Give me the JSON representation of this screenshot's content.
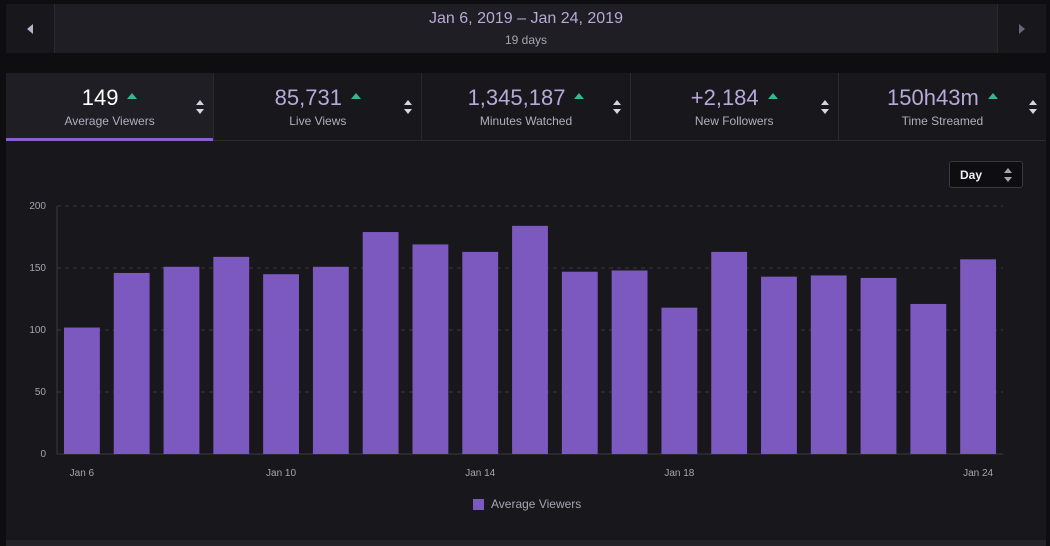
{
  "date_range": {
    "title": "Jan 6, 2019 – Jan 24, 2019",
    "subtitle": "19 days"
  },
  "stats": [
    {
      "value": "149",
      "label": "Average Viewers",
      "active": true
    },
    {
      "value": "85,731",
      "label": "Live Views"
    },
    {
      "value": "1,345,187",
      "label": "Minutes Watched"
    },
    {
      "value": "+2,184",
      "label": "New Followers"
    },
    {
      "value": "150h43m",
      "label": "Time Streamed"
    }
  ],
  "granularity": {
    "selected": "Day"
  },
  "colors": {
    "accent": "#8a5dd0",
    "bar": "#7b59bf",
    "up": "#2fb98d"
  },
  "icons": [
    "chevron-left-icon",
    "chevron-right-icon",
    "trend-up-icon",
    "sort-icon"
  ],
  "chart_data": {
    "type": "bar",
    "categories": [
      "Jan 6",
      "Jan 7",
      "Jan 8",
      "Jan 9",
      "Jan 10",
      "Jan 11",
      "Jan 12",
      "Jan 13",
      "Jan 14",
      "Jan 15",
      "Jan 16",
      "Jan 17",
      "Jan 18",
      "Jan 19",
      "Jan 20",
      "Jan 21",
      "Jan 22",
      "Jan 23",
      "Jan 24"
    ],
    "tick_labels": [
      "Jan 6",
      "Jan 10",
      "Jan 14",
      "Jan 18",
      "Jan 24"
    ],
    "series": [
      {
        "name": "Average Viewers",
        "values": [
          102,
          146,
          151,
          159,
          145,
          151,
          179,
          169,
          163,
          184,
          147,
          148,
          118,
          163,
          143,
          144,
          142,
          121,
          157
        ]
      }
    ],
    "ylim": [
      0,
      200
    ],
    "yticks": [
      0,
      50,
      100,
      150,
      200
    ],
    "grid": true,
    "legend": "bottom-center"
  }
}
